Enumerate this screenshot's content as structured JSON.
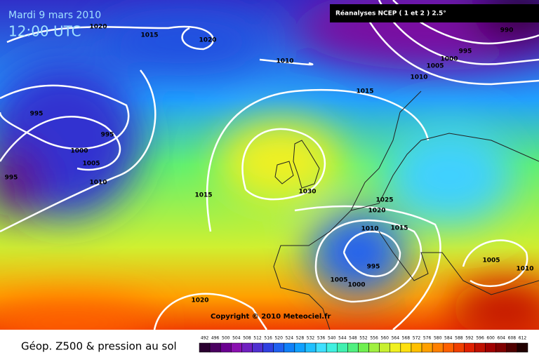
{
  "header": {
    "date": "Mardi 9 mars 2010",
    "time": "12:00 UTC",
    "source": "Réanalyses NCEP ( 1 et 2 ) 2.5°"
  },
  "copyright": "Copyright © 2010 Meteociel.fr",
  "isobar_labels": [
    "1020",
    "1015",
    "1020",
    "1010",
    "995",
    "1000",
    "1005",
    "1010",
    "990",
    "1015",
    "995",
    "995",
    "1000",
    "1005",
    "1010",
    "995",
    "1015",
    "1030",
    "1025",
    "1020",
    "1010",
    "1015",
    "995",
    "1005",
    "1000",
    "1020",
    "1005",
    "1010"
  ],
  "legend": {
    "title": "Géop. Z500 & pression au sol",
    "scale": [
      492,
      496,
      500,
      504,
      508,
      512,
      516,
      520,
      524,
      528,
      532,
      536,
      540,
      544,
      548,
      552,
      556,
      560,
      564,
      568,
      572,
      576,
      580,
      584,
      588,
      592,
      596,
      600,
      604,
      608,
      612
    ],
    "colors": [
      "#2a0030",
      "#4a0060",
      "#6a0090",
      "#8a10b0",
      "#7020c0",
      "#5030d0",
      "#3040e0",
      "#2060f0",
      "#1080f8",
      "#10a0ff",
      "#20c0ff",
      "#40e0ff",
      "#40f0e0",
      "#40f0b0",
      "#50f080",
      "#70f050",
      "#a0f040",
      "#c8f030",
      "#f0f020",
      "#ffe010",
      "#ffc000",
      "#ffa000",
      "#ff8000",
      "#ff6000",
      "#f04000",
      "#e02000",
      "#c01000",
      "#a00000",
      "#800000",
      "#500000",
      "#200000"
    ]
  }
}
